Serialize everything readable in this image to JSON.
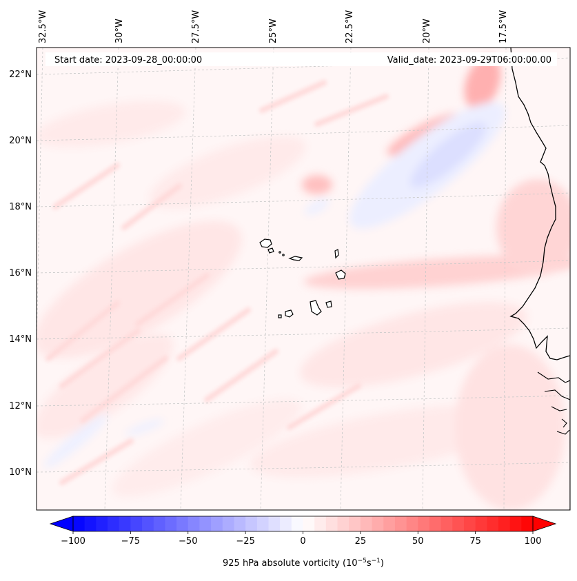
{
  "map": {
    "start_label": "Start date: 2023-09-28_00:00:00",
    "valid_label": "Valid_date: 2023-09-29T06:00:00.00",
    "lon_labels": [
      "32.5°W",
      "30°W",
      "27.5°W",
      "25°W",
      "22.5°W",
      "20°W",
      "17.5°W"
    ],
    "lat_labels": [
      "22°N",
      "20°N",
      "18°N",
      "16°N",
      "14°N",
      "12°N",
      "10°N"
    ],
    "colorbar": {
      "ticks": [
        "−100",
        "−75",
        "−50",
        "−25",
        "0",
        "25",
        "50",
        "75",
        "100"
      ],
      "label_main": "925 hPa absolute vorticity (10",
      "label_exp1": "−5",
      "label_mid": "s",
      "label_exp2": "−1",
      "label_end": ")",
      "colors": {
        "min": "#0000ff",
        "mid": "#ffffff",
        "max": "#ff0000"
      }
    },
    "colors": {
      "positive_weak": "#ffe9e9",
      "positive_mid": "#ffd0d0",
      "positive_strong": "#ffb3b3",
      "negative_weak": "#eef0ff",
      "negative_mid": "#d9dcff",
      "coastline": "#000000",
      "grid": "#c8c8c8"
    }
  }
}
